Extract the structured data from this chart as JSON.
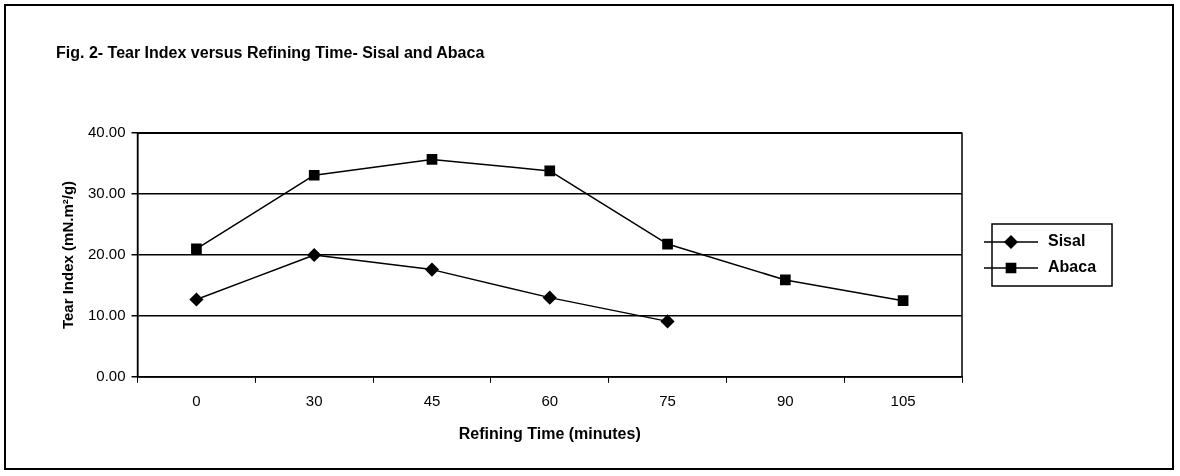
{
  "chart_data": {
    "type": "line",
    "title": "Fig. 2- Tear Index versus Refining Time- Sisal and Abaca",
    "xlabel": "Refining Time (minutes)",
    "ylabel": "Tear Index (mN.m²/g)",
    "categories": [
      "0",
      "30",
      "45",
      "60",
      "75",
      "90",
      "105"
    ],
    "series": [
      {
        "name": "Sisal",
        "color": "#000000",
        "marker": "diamond",
        "values": [
          12.7,
          20.0,
          17.6,
          13.0,
          9.1,
          null,
          null
        ]
      },
      {
        "name": "Abaca",
        "color": "#000000",
        "marker": "square",
        "values": [
          21.0,
          33.1,
          35.7,
          33.8,
          21.8,
          15.9,
          12.5
        ]
      }
    ],
    "ylim": [
      0,
      40
    ],
    "yticks": [
      {
        "value": 0,
        "label": "0.00"
      },
      {
        "value": 10,
        "label": "10.00"
      },
      {
        "value": 20,
        "label": "20.00"
      },
      {
        "value": 30,
        "label": "30.00"
      },
      {
        "value": 40,
        "label": "40.00"
      }
    ],
    "grid": "y",
    "legend": "right",
    "line_style": "solid"
  }
}
